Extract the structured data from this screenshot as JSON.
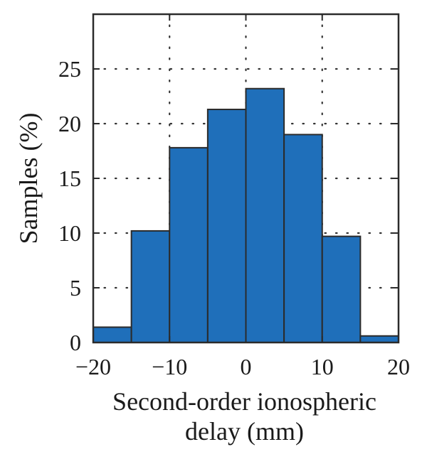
{
  "chart_data": {
    "type": "bar",
    "title": "",
    "xlabel_lines": [
      "Second-order ionospheric",
      "delay (mm)"
    ],
    "ylabel": "Samples (%)",
    "bin_edges": [
      -20,
      -15,
      -10,
      -5,
      0,
      5,
      10,
      15,
      20
    ],
    "values": [
      1.4,
      10.2,
      17.8,
      21.3,
      23.2,
      19.0,
      9.7,
      0.6
    ],
    "xlim": [
      -20,
      20
    ],
    "ylim": [
      0,
      30
    ],
    "xticks": [
      -20,
      -10,
      0,
      10,
      20
    ],
    "xtick_labels": [
      "−20",
      "−10",
      "0",
      "10",
      "20"
    ],
    "yticks": [
      0,
      5,
      10,
      15,
      20,
      25
    ],
    "yticks_labels": [
      "0",
      "5",
      "10",
      "15",
      "20",
      "25"
    ],
    "grid": "dotted",
    "bar_color": "#1f6fba",
    "edge_color": "#2b2b2b"
  }
}
